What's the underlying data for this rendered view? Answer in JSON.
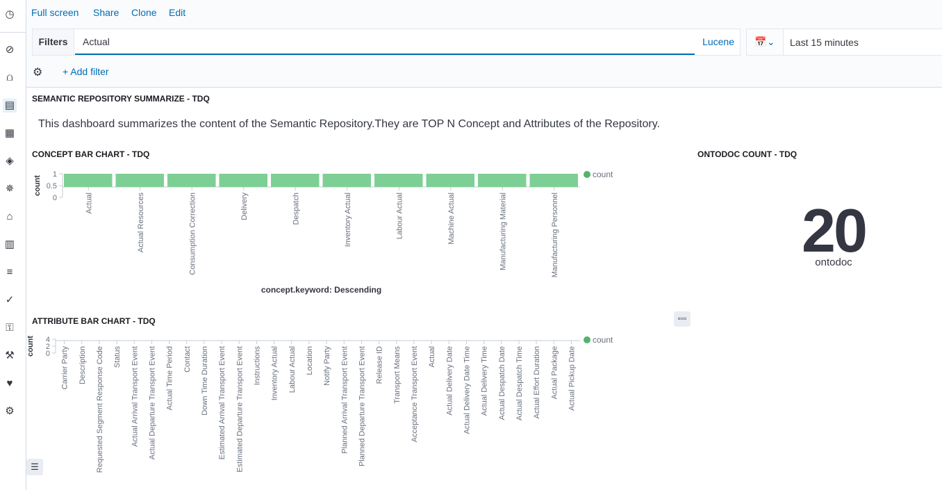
{
  "sidebar": {
    "icons": [
      "clock-icon",
      "compass-icon",
      "visualize-icon",
      "dashboard-icon",
      "canvas-icon",
      "maps-icon",
      "ml-icon",
      "infrastructure-icon",
      "logs-icon",
      "apm-icon",
      "uptime-icon",
      "siem-icon",
      "dev-tools-icon",
      "monitoring-icon",
      "management-icon"
    ]
  },
  "top": {
    "links": [
      "Full screen",
      "Share",
      "Clone",
      "Edit"
    ]
  },
  "filters": {
    "label": "Filters",
    "query": "Actual",
    "language": "Lucene",
    "date": "Last 15 minutes",
    "add_filter": "+ Add filter"
  },
  "panels": {
    "markdown": {
      "title": "SEMANTIC REPOSITORY SUMMARIZE - TDQ",
      "text": "This dashboard summarizes the content of the Semantic Repository.They are TOP N Concept and Attributes of the Repository."
    },
    "concept": {
      "title": "CONCEPT BAR CHART - TDQ"
    },
    "metric": {
      "title": "ONTODOC COUNT - TDQ",
      "value": "20",
      "label": "ontodoc"
    },
    "attribute": {
      "title": "ATTRIBUTE BAR CHART - TDQ"
    }
  },
  "colors": {
    "bar": "#7ecf95",
    "legend": "#54b36c",
    "link": "#006bb4"
  },
  "chart_data": [
    {
      "type": "bar",
      "ylabel": "count",
      "xlabel": "concept.keyword: Descending",
      "legend": [
        "count"
      ],
      "legend_position": "top-right",
      "ylim": [
        0,
        1
      ],
      "yticks": [
        "0",
        "0.5",
        "1"
      ],
      "categories": [
        "Actual",
        "Actual Resources",
        "Consumption Correction",
        "Delivery",
        "Despatch",
        "Inventory Actual",
        "Labour Actual",
        "Machine Actual",
        "Manufacturing Material",
        "Manufacturing Personnel"
      ],
      "values": [
        1,
        1,
        1,
        1,
        1,
        1,
        1,
        1,
        1,
        1
      ]
    },
    {
      "type": "bar",
      "ylabel": "count",
      "legend": [
        "count"
      ],
      "legend_position": "top-right",
      "ylim": [
        0,
        4
      ],
      "yticks": [
        "0",
        "2",
        "4"
      ],
      "categories": [
        "Carrier Party",
        "Description",
        "Requested Segment Response Code",
        "Status",
        "Actual Arrival Transport Event",
        "Actual Departure Transport Event",
        "Actual Time Period",
        "Contact",
        "Down Time Duration",
        "Estimated Arrival Transport Event",
        "Estimated Departure Transport Event",
        "Instructions",
        "Inventory Actual",
        "Labour Actual",
        "Location",
        "Notify Party",
        "Planned Arrival Transport Event",
        "Planned Departure Transport Event",
        "Release ID",
        "Transport Means",
        "Acceptance Transport Event",
        "Actual",
        "Actual Delivery Date",
        "Actual Delivery Date Time",
        "Actual Delivery Time",
        "Actual Despatch Date",
        "Actual Despatch Time",
        "Actual Effort Duration",
        "Actual Package",
        "Actual Pickup Date"
      ]
    }
  ]
}
